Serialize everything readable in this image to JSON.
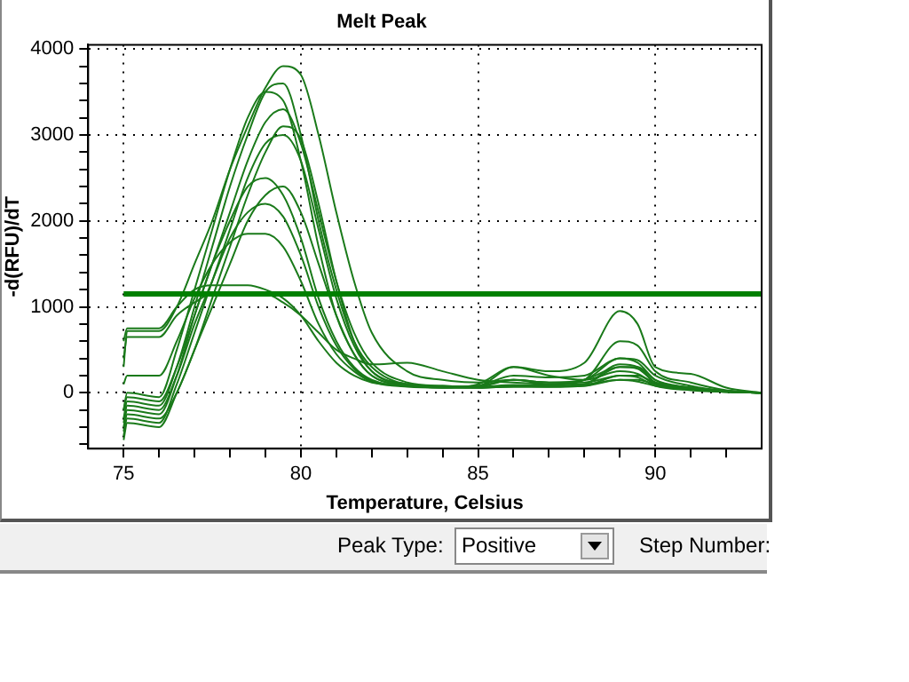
{
  "chart_data": {
    "type": "line",
    "title": "Melt Peak",
    "xlabel": "Temperature, Celsius",
    "ylabel": "-d(RFU)/dT",
    "x": [
      75,
      75.1,
      76,
      76.5,
      77,
      77.5,
      78,
      78.5,
      79,
      79.5,
      80,
      80.5,
      81,
      81.5,
      82,
      83,
      84,
      85,
      86,
      87,
      88,
      89,
      89.5,
      90,
      91,
      92,
      93
    ],
    "xlim": [
      74,
      93
    ],
    "ylim": [
      -650,
      4050
    ],
    "xticks": [
      75,
      {
        "value": 76,
        "label": null
      },
      {
        "value": 77,
        "label": null
      },
      {
        "value": 78,
        "label": null
      },
      {
        "value": 79,
        "label": null
      },
      80,
      {
        "value": 81,
        "label": null
      },
      {
        "value": 82,
        "label": null
      },
      {
        "value": 83,
        "label": null
      },
      {
        "value": 84,
        "label": null
      },
      85,
      {
        "value": 86,
        "label": null
      },
      {
        "value": 87,
        "label": null
      },
      {
        "value": 88,
        "label": null
      },
      {
        "value": 89,
        "label": null
      },
      90,
      {
        "value": 91,
        "label": null
      },
      {
        "value": 92,
        "label": null
      }
    ],
    "yticks": [
      {
        "value": -600,
        "label": null
      },
      {
        "value": -400,
        "label": null
      },
      {
        "value": -200,
        "label": null
      },
      0,
      {
        "value": 200,
        "label": null
      },
      {
        "value": 400,
        "label": null
      },
      {
        "value": 600,
        "label": null
      },
      {
        "value": 800,
        "label": null
      },
      1000,
      {
        "value": 1200,
        "label": null
      },
      {
        "value": 1400,
        "label": null
      },
      {
        "value": 1600,
        "label": null
      },
      {
        "value": 1800,
        "label": null
      },
      2000,
      {
        "value": 2200,
        "label": null
      },
      {
        "value": 2400,
        "label": null
      },
      {
        "value": 2600,
        "label": null
      },
      {
        "value": 2800,
        "label": null
      },
      3000,
      {
        "value": 3200,
        "label": null
      },
      {
        "value": 3400,
        "label": null
      },
      {
        "value": 3600,
        "label": null
      },
      {
        "value": 3800,
        "label": null
      },
      4000
    ],
    "grid": true,
    "legend": false,
    "marker": "none",
    "line_style": "solid",
    "ref_lines": [
      {
        "axis": "y",
        "value": 1150,
        "color": "#008000"
      }
    ],
    "series": [
      {
        "color": "#1a7a1a",
        "values": [
          300,
          720,
          720,
          1000,
          1500,
          2000,
          2600,
          3100,
          3550,
          3800,
          3700,
          3000,
          2100,
          1300,
          700,
          250,
          150,
          120,
          150,
          120,
          120,
          200,
          200,
          120,
          60,
          20,
          0
        ]
      },
      {
        "color": "#1a7a1a",
        "values": [
          -300,
          -100,
          -150,
          300,
          1000,
          1700,
          2400,
          3000,
          3500,
          3600,
          3000,
          2000,
          1200,
          600,
          300,
          100,
          80,
          60,
          80,
          70,
          80,
          150,
          130,
          80,
          40,
          10,
          0
        ]
      },
      {
        "color": "#1a7a1a",
        "values": [
          -400,
          -200,
          -250,
          200,
          900,
          1500,
          2100,
          2700,
          3150,
          3300,
          2900,
          2100,
          1300,
          700,
          350,
          120,
          80,
          70,
          90,
          80,
          100,
          300,
          280,
          120,
          60,
          20,
          0
        ]
      },
      {
        "color": "#1a7a1a",
        "values": [
          -500,
          -300,
          -350,
          100,
          700,
          1300,
          1900,
          2500,
          2900,
          3000,
          2700,
          1900,
          1100,
          550,
          250,
          100,
          70,
          60,
          70,
          70,
          100,
          330,
          300,
          120,
          50,
          15,
          0
        ]
      },
      {
        "color": "#1a7a1a",
        "values": [
          -200,
          -50,
          -100,
          300,
          900,
          1500,
          2000,
          2400,
          2500,
          2300,
          1800,
          1100,
          600,
          300,
          150,
          80,
          70,
          80,
          150,
          120,
          150,
          400,
          380,
          200,
          80,
          20,
          0
        ]
      },
      {
        "color": "#1a7a1a",
        "values": [
          -450,
          -250,
          -300,
          0,
          500,
          1000,
          1500,
          2000,
          2300,
          2400,
          2100,
          1500,
          900,
          450,
          200,
          90,
          60,
          60,
          80,
          90,
          150,
          600,
          550,
          250,
          120,
          30,
          0
        ]
      },
      {
        "color": "#1a7a1a",
        "values": [
          -350,
          -150,
          -200,
          200,
          800,
          1300,
          1800,
          2100,
          2200,
          2050,
          1600,
          1000,
          550,
          280,
          140,
          80,
          60,
          70,
          150,
          100,
          150,
          300,
          300,
          150,
          60,
          15,
          0
        ]
      },
      {
        "color": "#1a7a1a",
        "values": [
          100,
          200,
          200,
          600,
          1100,
          1500,
          1750,
          1850,
          1850,
          1700,
          1300,
          800,
          450,
          250,
          130,
          70,
          60,
          80,
          200,
          180,
          200,
          400,
          350,
          150,
          60,
          15,
          0
        ]
      },
      {
        "color": "#1a7a1a",
        "values": [
          600,
          750,
          750,
          1000,
          1200,
          1250,
          1250,
          1250,
          1200,
          1100,
          900,
          600,
          350,
          200,
          120,
          80,
          60,
          100,
          300,
          250,
          350,
          950,
          800,
          300,
          220,
          60,
          0
        ]
      },
      {
        "color": "#1a7a1a",
        "values": [
          400,
          650,
          650,
          900,
          1050,
          1150,
          1150,
          1150,
          1150,
          1050,
          900,
          700,
          500,
          400,
          330,
          350,
          250,
          150,
          120,
          100,
          100,
          150,
          150,
          100,
          50,
          10,
          0
        ]
      },
      {
        "color": "#1a7a1a",
        "values": [
          -200,
          0,
          -50,
          500,
          1200,
          1900,
          2600,
          3200,
          3500,
          3400,
          2700,
          1700,
          900,
          450,
          200,
          90,
          70,
          80,
          300,
          200,
          150,
          250,
          220,
          100,
          40,
          10,
          0
        ]
      },
      {
        "color": "#1a7a1a",
        "values": [
          -550,
          -350,
          -400,
          0,
          500,
          1100,
          1700,
          2300,
          2800,
          3100,
          2950,
          2200,
          1300,
          600,
          250,
          100,
          70,
          60,
          70,
          70,
          80,
          200,
          180,
          80,
          30,
          10,
          0
        ]
      }
    ],
    "annotations": [
      "Peak Type:",
      "Positive",
      "Step Number:"
    ]
  }
}
